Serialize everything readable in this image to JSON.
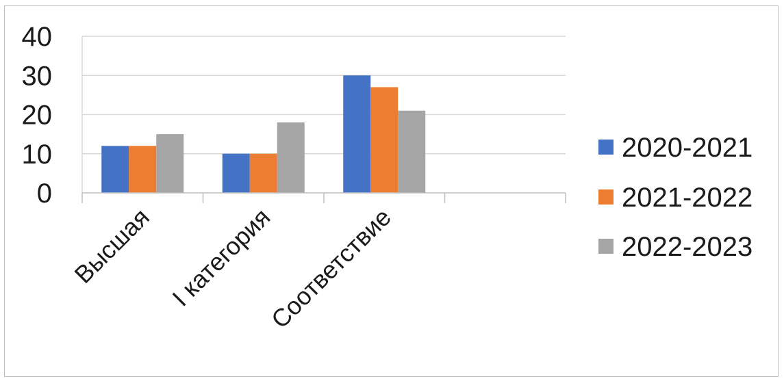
{
  "chart_data": {
    "type": "bar",
    "title": "",
    "xlabel": "",
    "ylabel": "",
    "categories": [
      "Высшая",
      "I категория",
      "Соответствие"
    ],
    "series": [
      {
        "name": "2020-2021",
        "values": [
          12,
          10,
          30
        ],
        "color": "#4472C4"
      },
      {
        "name": "2021-2022",
        "values": [
          12,
          10,
          27
        ],
        "color": "#ED7D31"
      },
      {
        "name": "2022-2023",
        "values": [
          15,
          18,
          21
        ],
        "color": "#A5A5A5"
      }
    ],
    "ylim": [
      0,
      40
    ],
    "yticks": [
      0,
      10,
      20,
      30,
      40
    ],
    "grid": true,
    "legend_position": "right"
  }
}
